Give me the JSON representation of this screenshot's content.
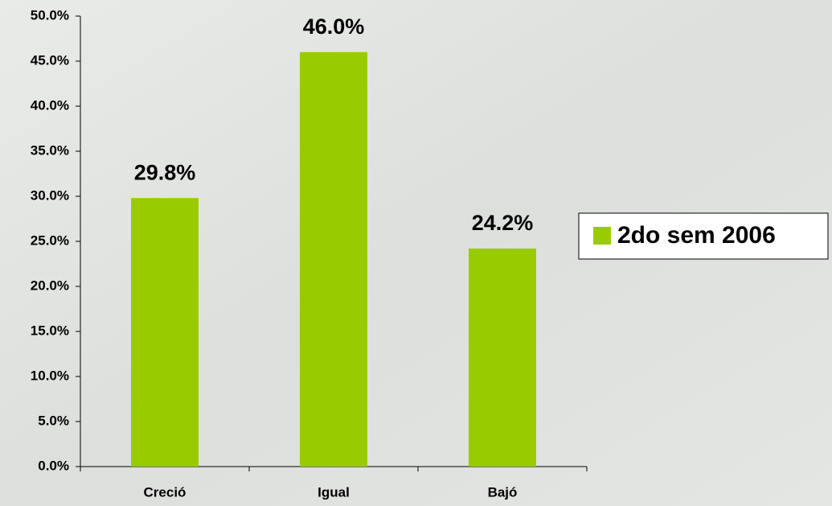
{
  "chart_data": {
    "type": "bar",
    "categories": [
      "Creció",
      "Igual",
      "Bajó"
    ],
    "series": [
      {
        "name": "2do sem 2006",
        "color": "#99cc00",
        "values": [
          29.8,
          46.0,
          24.2
        ],
        "value_labels": [
          "29.8%",
          "46.0%",
          "24.2%"
        ]
      }
    ],
    "ylim": [
      0,
      50
    ],
    "yticks": [
      {
        "value": 0,
        "label": "0.0%"
      },
      {
        "value": 5,
        "label": "5.0%"
      },
      {
        "value": 10,
        "label": "10.0%"
      },
      {
        "value": 15,
        "label": "15.0%"
      },
      {
        "value": 20,
        "label": "20.0%"
      },
      {
        "value": 25,
        "label": "25.0%"
      },
      {
        "value": 30,
        "label": "30.0%"
      },
      {
        "value": 35,
        "label": "35.0%"
      },
      {
        "value": 40,
        "label": "40.0%"
      },
      {
        "value": 45,
        "label": "45.0%"
      },
      {
        "value": 50,
        "label": "50.0%"
      }
    ],
    "grid": false,
    "legend": "right"
  }
}
